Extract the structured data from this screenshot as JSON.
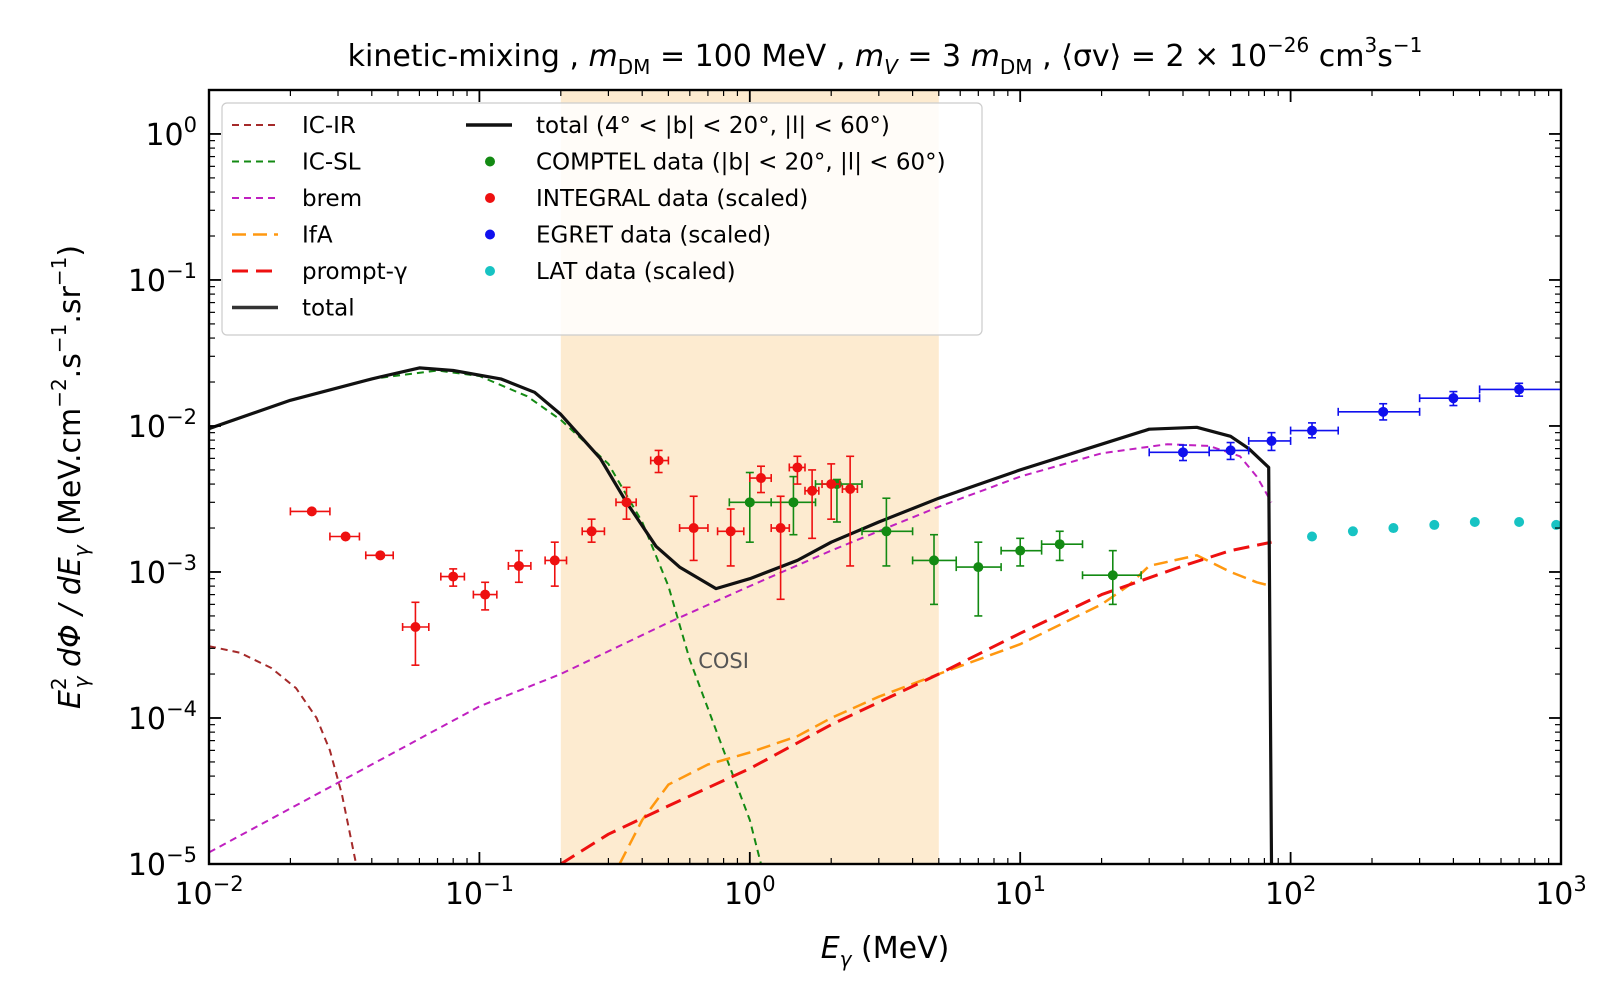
{
  "chart_data": {
    "type": "line",
    "title": "kinetic-mixing ,  m_DM = 100 MeV ,  m_V = 3 m_DM ,  ⟨σv⟩ = 2 × 10^−26 cm³s⁻¹",
    "title_parts": {
      "t1": "kinetic-mixing ,  ",
      "t2": "m",
      "t3": "DM",
      "t4": " = 100 MeV ,  ",
      "t5": "m",
      "t6": "V",
      "t7": " = 3 ",
      "t8": "m",
      "t9": "DM",
      "t10": " ,  ⟨σv⟩ = 2 × 10",
      "t11": "−26",
      "t12": " cm",
      "t13": "3",
      "t14": "s",
      "t15": "−1"
    },
    "xlabel": "E_γ (MeV)",
    "xlabel_parts": {
      "a": "E",
      "b": "γ",
      "c": " (MeV)"
    },
    "ylabel": "E_γ^2 dΦ / dE_γ (MeV.cm^−2.s^−1.sr^−1)",
    "ylabel_parts": {
      "a": "E",
      "b": "2",
      "c": "γ",
      "d": " dΦ / dE",
      "e": "γ",
      "f": " (MeV.cm",
      "g": "−2",
      "h": ".s",
      "i": "−1",
      "j": ".sr",
      "k": "−1",
      "l": ")"
    },
    "xscale": "log",
    "yscale": "log",
    "xlim": [
      0.01,
      1000
    ],
    "ylim": [
      1e-05,
      2.0
    ],
    "x_ticks": [
      {
        "value": 0.01,
        "base": "10",
        "exp": "−2"
      },
      {
        "value": 0.1,
        "base": "10",
        "exp": "−1"
      },
      {
        "value": 1,
        "base": "10",
        "exp": "0"
      },
      {
        "value": 10,
        "base": "10",
        "exp": "1"
      },
      {
        "value": 100,
        "base": "10",
        "exp": "2"
      },
      {
        "value": 1000,
        "base": "10",
        "exp": "3"
      }
    ],
    "y_ticks": [
      {
        "value": 1e-05,
        "base": "10",
        "exp": "−5"
      },
      {
        "value": 0.0001,
        "base": "10",
        "exp": "−4"
      },
      {
        "value": 0.001,
        "base": "10",
        "exp": "−3"
      },
      {
        "value": 0.01,
        "base": "10",
        "exp": "−2"
      },
      {
        "value": 0.1,
        "base": "10",
        "exp": "−1"
      },
      {
        "value": 1,
        "base": "10",
        "exp": "0"
      }
    ],
    "band": {
      "label": "COSI",
      "x_range": [
        0.2,
        5.0
      ],
      "label_x": 0.8,
      "label_y": 0.00022,
      "color": "#fdebd0"
    },
    "curves": [
      {
        "name": "IC-IR",
        "color": "#a52a2a",
        "dash": "7,5",
        "width": 2,
        "points": [
          [
            0.01,
            0.00031
          ],
          [
            0.013,
            0.00028
          ],
          [
            0.017,
            0.00022
          ],
          [
            0.021,
            0.00016
          ],
          [
            0.025,
            0.0001
          ],
          [
            0.028,
            6e-05
          ],
          [
            0.031,
            3e-05
          ],
          [
            0.035,
            1e-05
          ]
        ]
      },
      {
        "name": "IC-SL",
        "color": "#138a13",
        "dash": "7,5",
        "width": 2,
        "points": [
          [
            0.01,
            0.0095
          ],
          [
            0.02,
            0.015
          ],
          [
            0.04,
            0.021
          ],
          [
            0.07,
            0.024
          ],
          [
            0.1,
            0.022
          ],
          [
            0.15,
            0.016
          ],
          [
            0.2,
            0.011
          ],
          [
            0.3,
            0.0055
          ],
          [
            0.4,
            0.0022
          ],
          [
            0.5,
            0.0008
          ],
          [
            0.6,
            0.00025
          ],
          [
            0.8,
            6e-05
          ],
          [
            1.0,
            2e-05
          ],
          [
            1.1,
            1e-05
          ]
        ]
      },
      {
        "name": "brem",
        "color": "#c020c0",
        "dash": "7,5",
        "width": 2,
        "points": [
          [
            0.01,
            1.2e-05
          ],
          [
            0.1,
            0.00012
          ],
          [
            0.2,
            0.0002
          ],
          [
            0.5,
            0.00045
          ],
          [
            1,
            0.0008
          ],
          [
            2,
            0.0014
          ],
          [
            5,
            0.0028
          ],
          [
            10,
            0.0045
          ],
          [
            20,
            0.0065
          ],
          [
            35,
            0.0075
          ],
          [
            50,
            0.0073
          ],
          [
            65,
            0.0062
          ],
          [
            75,
            0.0045
          ],
          [
            85,
            0.003
          ]
        ]
      },
      {
        "name": "IfA",
        "color": "#ff9810",
        "dash": "14,7",
        "width": 2.5,
        "points": [
          [
            0.33,
            1e-05
          ],
          [
            0.4,
            2e-05
          ],
          [
            0.5,
            3.5e-05
          ],
          [
            0.7,
            4.8e-05
          ],
          [
            1.0,
            5.8e-05
          ],
          [
            1.5,
            7.5e-05
          ],
          [
            2,
            0.0001
          ],
          [
            3,
            0.00014
          ],
          [
            5,
            0.0002
          ],
          [
            10,
            0.00032
          ],
          [
            20,
            0.0006
          ],
          [
            25,
            0.0008
          ],
          [
            30,
            0.0011
          ],
          [
            45,
            0.0013
          ],
          [
            60,
            0.001
          ],
          [
            75,
            0.00085
          ],
          [
            85,
            0.0008
          ]
        ]
      },
      {
        "name": "prompt-γ",
        "color": "#ee1010",
        "dash": "16,8",
        "width": 3,
        "points": [
          [
            0.2,
            1e-05
          ],
          [
            0.3,
            1.6e-05
          ],
          [
            0.5,
            2.5e-05
          ],
          [
            1.0,
            4.5e-05
          ],
          [
            2,
            9e-05
          ],
          [
            5,
            0.0002
          ],
          [
            10,
            0.00038
          ],
          [
            20,
            0.0007
          ],
          [
            40,
            0.0011
          ],
          [
            60,
            0.0014
          ],
          [
            85,
            0.0016
          ]
        ]
      },
      {
        "name": "total",
        "color": "#111111",
        "dash": "",
        "width": 3.2,
        "points": [
          [
            0.01,
            0.0096
          ],
          [
            0.02,
            0.015
          ],
          [
            0.04,
            0.021
          ],
          [
            0.06,
            0.025
          ],
          [
            0.08,
            0.024
          ],
          [
            0.12,
            0.021
          ],
          [
            0.16,
            0.017
          ],
          [
            0.2,
            0.012
          ],
          [
            0.28,
            0.006
          ],
          [
            0.35,
            0.003
          ],
          [
            0.45,
            0.0015
          ],
          [
            0.55,
            0.00108
          ],
          [
            0.75,
            0.00077
          ],
          [
            1.0,
            0.0009
          ],
          [
            1.5,
            0.0012
          ],
          [
            2,
            0.0016
          ],
          [
            3,
            0.0022
          ],
          [
            5,
            0.0032
          ],
          [
            10,
            0.005
          ],
          [
            20,
            0.0075
          ],
          [
            30,
            0.0095
          ],
          [
            45,
            0.0098
          ],
          [
            60,
            0.0085
          ],
          [
            70,
            0.007
          ],
          [
            83,
            0.0052
          ],
          [
            85,
            1e-05
          ]
        ]
      }
    ],
    "data_series": [
      {
        "name": "COMPTEL data (|b| < 20°, |l| < 60°)",
        "color": "#138a13",
        "points": [
          [
            1.0,
            0.003,
            0.84,
            1.2,
            0.0016,
            0.0048
          ],
          [
            1.45,
            0.003,
            1.2,
            1.75,
            0.0018,
            0.0045
          ],
          [
            2.1,
            0.004,
            1.75,
            2.6,
            0.0022,
            0.0043
          ],
          [
            3.2,
            0.0019,
            2.6,
            4.0,
            0.0011,
            0.0032
          ],
          [
            4.8,
            0.0012,
            4.0,
            5.8,
            0.0006,
            0.0018
          ],
          [
            7.0,
            0.00108,
            5.8,
            8.5,
            0.0005,
            0.0016
          ],
          [
            10,
            0.0014,
            8.5,
            12,
            0.0011,
            0.0017
          ],
          [
            14,
            0.00155,
            12,
            17,
            0.0012,
            0.0019
          ],
          [
            22,
            0.00095,
            17,
            28,
            0.0006,
            0.0014
          ]
        ]
      },
      {
        "name": "INTEGRAL data (scaled)",
        "color": "#ee1010",
        "points": [
          [
            0.024,
            0.0026,
            0.02,
            0.028,
            0.0026,
            0.0026
          ],
          [
            0.032,
            0.00175,
            0.028,
            0.036,
            0.00175,
            0.00175
          ],
          [
            0.043,
            0.0013,
            0.038,
            0.048,
            0.0013,
            0.0013
          ],
          [
            0.058,
            0.00042,
            0.052,
            0.065,
            0.00023,
            0.00062
          ],
          [
            0.08,
            0.00093,
            0.072,
            0.088,
            0.0008,
            0.00105
          ],
          [
            0.105,
            0.0007,
            0.095,
            0.116,
            0.00055,
            0.00085
          ],
          [
            0.14,
            0.0011,
            0.128,
            0.155,
            0.00085,
            0.0014
          ],
          [
            0.19,
            0.0012,
            0.175,
            0.21,
            0.0008,
            0.0016
          ],
          [
            0.26,
            0.0019,
            0.24,
            0.29,
            0.0016,
            0.0023
          ],
          [
            0.35,
            0.003,
            0.32,
            0.38,
            0.0023,
            0.0038
          ],
          [
            0.46,
            0.0058,
            0.43,
            0.5,
            0.0048,
            0.0068
          ],
          [
            0.62,
            0.002,
            0.55,
            0.7,
            0.0012,
            0.0033
          ],
          [
            0.85,
            0.0019,
            0.76,
            0.95,
            0.0011,
            0.0027
          ],
          [
            1.1,
            0.0044,
            1.0,
            1.2,
            0.0035,
            0.0053
          ],
          [
            1.3,
            0.002,
            1.2,
            1.4,
            0.00065,
            0.0033
          ],
          [
            1.5,
            0.0052,
            1.4,
            1.6,
            0.004,
            0.0062
          ],
          [
            1.7,
            0.0036,
            1.6,
            1.8,
            0.0017,
            0.005
          ],
          [
            2.0,
            0.004,
            1.85,
            2.15,
            0.0023,
            0.0055
          ],
          [
            2.35,
            0.0037,
            2.2,
            2.5,
            0.0011,
            0.0062
          ]
        ]
      },
      {
        "name": "EGRET data (scaled)",
        "color": "#1010ee",
        "points": [
          [
            40,
            0.0066,
            30,
            50,
            0.0058,
            0.0074
          ],
          [
            60,
            0.0068,
            50,
            70,
            0.0059,
            0.0077
          ],
          [
            85,
            0.0079,
            70,
            100,
            0.0068,
            0.009
          ],
          [
            120,
            0.0093,
            100,
            150,
            0.0083,
            0.0105
          ],
          [
            220,
            0.0125,
            150,
            300,
            0.011,
            0.0142
          ],
          [
            400,
            0.0155,
            300,
            500,
            0.0138,
            0.0172
          ],
          [
            700,
            0.0178,
            500,
            1000,
            0.016,
            0.0196
          ]
        ]
      },
      {
        "name": "LAT data (scaled)",
        "color": "#17c3c3",
        "points": [
          [
            120,
            0.00175,
            120,
            120,
            0.00175,
            0.00175
          ],
          [
            170,
            0.0019,
            170,
            170,
            0.0019,
            0.0019
          ],
          [
            240,
            0.002,
            240,
            240,
            0.002,
            0.002
          ],
          [
            340,
            0.0021,
            340,
            340,
            0.0021,
            0.0021
          ],
          [
            480,
            0.0022,
            480,
            480,
            0.0022,
            0.0022
          ],
          [
            700,
            0.0022,
            700,
            700,
            0.0022,
            0.0022
          ],
          [
            960,
            0.0021,
            960,
            960,
            0.0021,
            0.0021
          ]
        ]
      }
    ],
    "legend": {
      "placement": "top-left",
      "col1": [
        {
          "label": "IC-IR",
          "color": "#a52a2a",
          "kind": "line",
          "dash": "7,5",
          "width": 2
        },
        {
          "label": "IC-SL",
          "color": "#138a13",
          "kind": "line",
          "dash": "7,5",
          "width": 2
        },
        {
          "label": "brem",
          "color": "#c020c0",
          "kind": "line",
          "dash": "7,5",
          "width": 2
        },
        {
          "label": "IfA",
          "color": "#ff9810",
          "kind": "line",
          "dash": "14,7",
          "width": 2.5
        },
        {
          "label": "prompt-γ",
          "color": "#ee1010",
          "kind": "line",
          "dash": "16,8",
          "width": 3
        },
        {
          "label": "total",
          "color": "#333333",
          "kind": "line",
          "dash": "",
          "width": 3.5
        }
      ],
      "col2": [
        {
          "label": "total (4° < |b| < 20°, |l| < 60°)",
          "color": "#111111",
          "kind": "line",
          "dash": "",
          "width": 3.5
        },
        {
          "label": "COMPTEL data (|b| < 20°, |l| < 60°)",
          "color": "#138a13",
          "kind": "dot"
        },
        {
          "label": "INTEGRAL data (scaled)",
          "color": "#ee1010",
          "kind": "dot"
        },
        {
          "label": "EGRET data (scaled)",
          "color": "#1010ee",
          "kind": "dot"
        },
        {
          "label": "LAT data (scaled)",
          "color": "#17c3c3",
          "kind": "dot"
        }
      ]
    }
  }
}
